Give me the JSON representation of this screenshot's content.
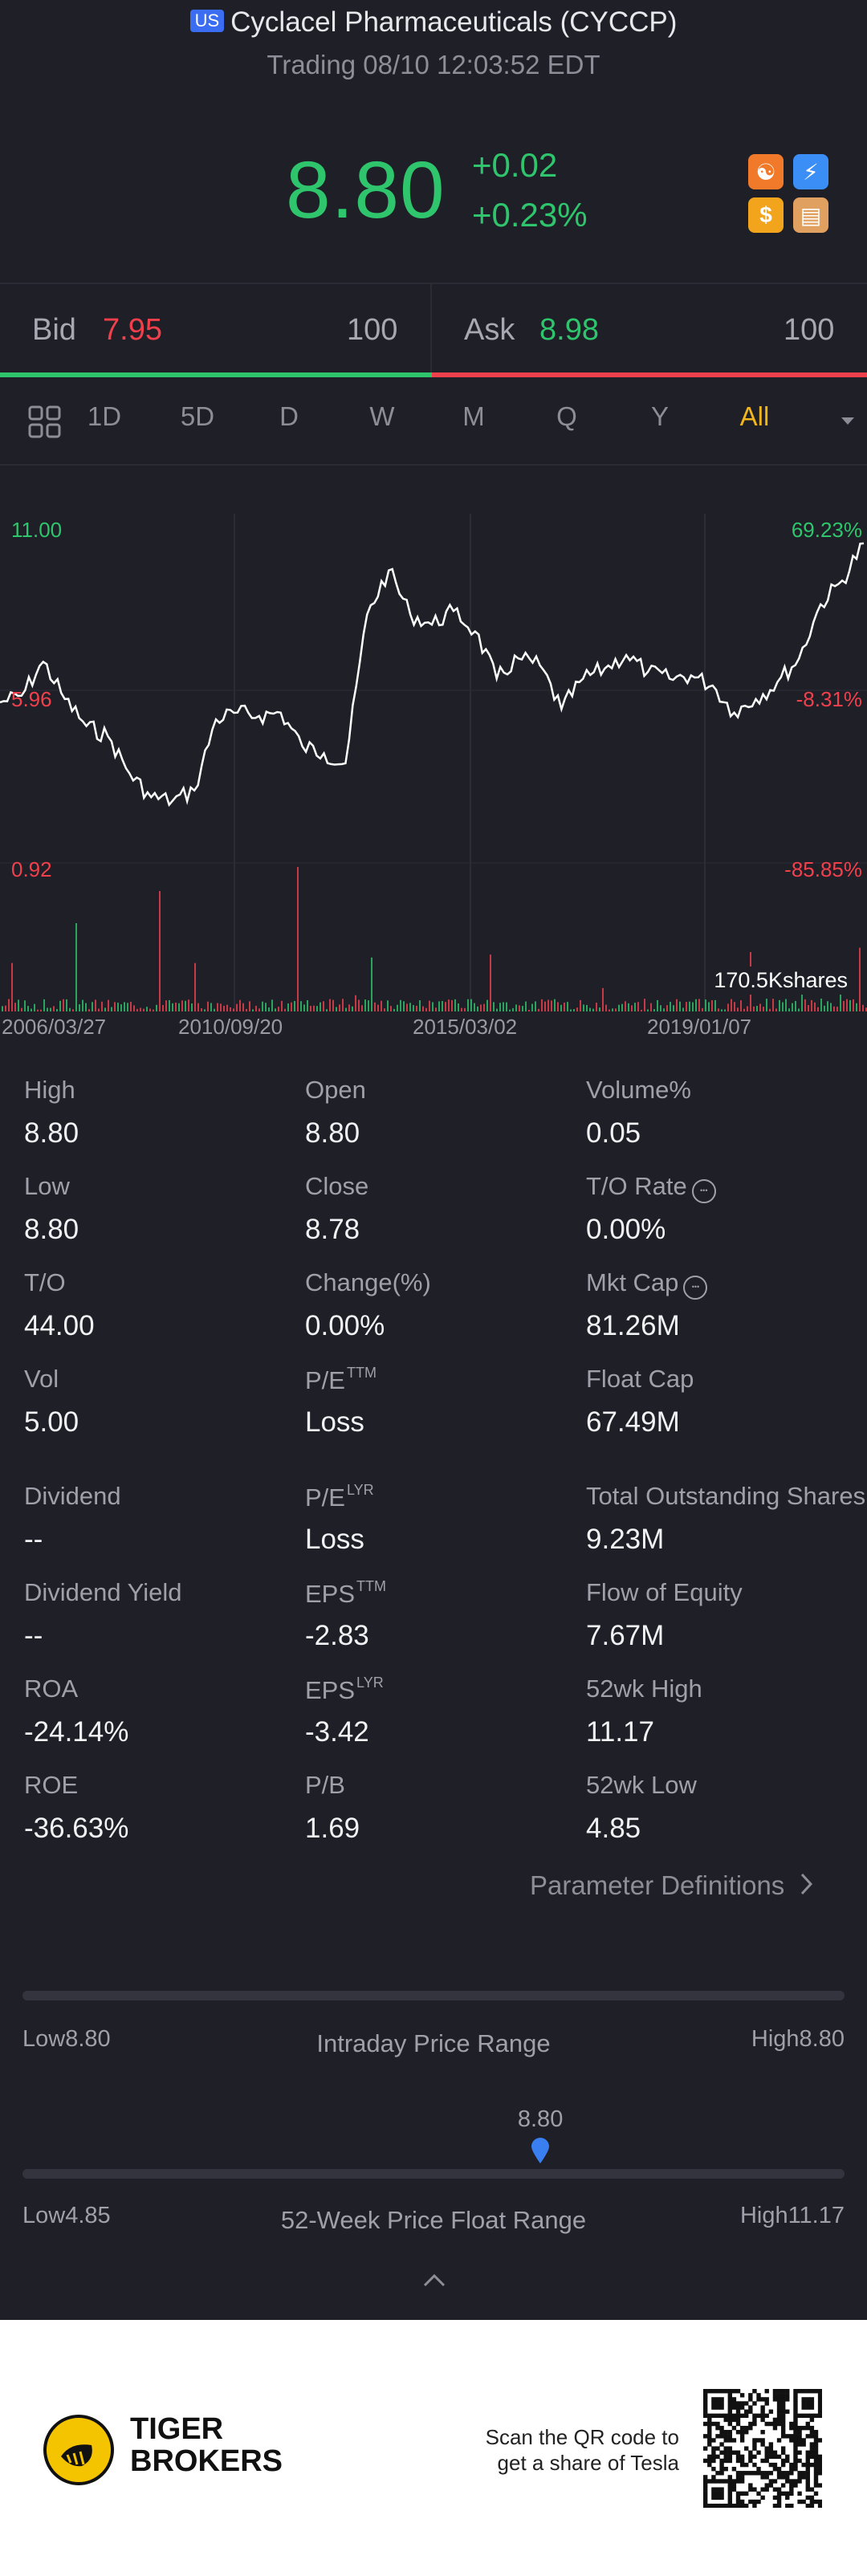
{
  "header": {
    "market_badge": "US",
    "title": "Cyclacel Pharmaceuticals (CYCCP)",
    "subtitle": "Trading 08/10 12:03:52 EDT",
    "price": "8.80",
    "change": "+0.02",
    "change_pct": "+0.23%",
    "accent_green": "#2fc56c",
    "accent_red": "#f0404c"
  },
  "quote": {
    "bid_label": "Bid",
    "bid_price": "7.95",
    "bid_size": "100",
    "ask_label": "Ask",
    "ask_price": "8.98",
    "ask_size": "100"
  },
  "tabs": [
    {
      "label": "1D"
    },
    {
      "label": "5D"
    },
    {
      "label": "D"
    },
    {
      "label": "W"
    },
    {
      "label": "M"
    },
    {
      "label": "Q"
    },
    {
      "label": "Y"
    },
    {
      "label": "All",
      "active": true
    }
  ],
  "chart_data": {
    "type": "line",
    "y_left_ticks": [
      "11.00",
      "5.96",
      "0.92"
    ],
    "y_right_ticks": [
      "69.23%",
      "-8.31%",
      "-85.85%"
    ],
    "x_ticks": [
      "2006/03/27",
      "2010/09/20",
      "2015/03/02",
      "2019/01/07"
    ],
    "volume_label": "170.5Kshares",
    "ylim": [
      0.92,
      11.0
    ],
    "x": [
      2006.2,
      2006.6,
      2007.0,
      2007.4,
      2007.8,
      2008.2,
      2008.6,
      2009.0,
      2009.4,
      2009.8,
      2010.2,
      2010.6,
      2011.0,
      2011.4,
      2011.8,
      2012.2,
      2012.6,
      2013.0,
      2013.4,
      2013.8,
      2014.2,
      2014.6,
      2015.0,
      2015.4,
      2015.8,
      2016.2,
      2016.6,
      2017.0,
      2017.4,
      2017.8,
      2018.2,
      2018.6,
      2019.0,
      2019.4,
      2019.8,
      2020.2,
      2020.6,
      2021.0,
      2021.4,
      2021.8,
      2022.2
    ],
    "values": [
      5.9,
      6.1,
      7.1,
      6.0,
      5.2,
      4.9,
      3.8,
      3.1,
      3.0,
      3.3,
      5.4,
      5.6,
      5.5,
      5.6,
      4.6,
      4.4,
      4.1,
      8.5,
      9.8,
      8.5,
      8.2,
      8.6,
      8.0,
      6.6,
      7.2,
      7.0,
      5.7,
      6.6,
      6.9,
      7.3,
      6.8,
      6.6,
      6.7,
      6.4,
      5.6,
      6.0,
      6.5,
      7.2,
      8.8,
      9.5,
      10.6
    ]
  },
  "stats": [
    [
      {
        "label": "High",
        "value": "8.80"
      },
      {
        "label": "Open",
        "value": "8.80"
      },
      {
        "label": "Volume%",
        "value": "0.05"
      }
    ],
    [
      {
        "label": "Low",
        "value": "8.80"
      },
      {
        "label": "Close",
        "value": "8.78"
      },
      {
        "label": "T/O Rate",
        "value": "0.00%",
        "info": true
      }
    ],
    [
      {
        "label": "T/O",
        "value": "44.00"
      },
      {
        "label": "Change(%)",
        "value": "0.00%"
      },
      {
        "label": "Mkt Cap",
        "value": "81.26M",
        "info": true
      }
    ],
    [
      {
        "label": "Vol",
        "value": "5.00"
      },
      {
        "label": "P/E",
        "sup": "TTM",
        "value": "Loss"
      },
      {
        "label": "Float Cap",
        "value": "67.49M"
      }
    ],
    [
      {
        "label": "Dividend",
        "value": "--"
      },
      {
        "label": "P/E",
        "sup": "LYR",
        "value": "Loss"
      },
      {
        "label": "Total Outstanding Shares",
        "value": "9.23M"
      }
    ],
    [
      {
        "label": "Dividend Yield",
        "value": "--"
      },
      {
        "label": "EPS",
        "sup": "TTM",
        "value": "-2.83"
      },
      {
        "label": "Flow of Equity",
        "value": "7.67M"
      }
    ],
    [
      {
        "label": "ROA",
        "value": "-24.14%"
      },
      {
        "label": "EPS",
        "sup": "LYR",
        "value": "-3.42"
      },
      {
        "label": "52wk High",
        "value": "11.17"
      }
    ],
    [
      {
        "label": "ROE",
        "value": "-36.63%"
      },
      {
        "label": "P/B",
        "value": "1.69"
      },
      {
        "label": "52wk Low",
        "value": "4.85"
      }
    ]
  ],
  "param_link": "Parameter Definitions",
  "intraday": {
    "low": "Low8.80",
    "title": "Intraday Price Range",
    "high": "High8.80"
  },
  "week52": {
    "current": "8.80",
    "fraction": 0.63,
    "low": "Low4.85",
    "title": "52-Week Price Float Range",
    "high": "High11.17"
  },
  "footer": {
    "brand_line1": "TIGER",
    "brand_line2": "BROKERS",
    "scan_line1": "Scan the QR code to",
    "scan_line2": "get a share of Tesla"
  },
  "icons": [
    "chart-grid-icon",
    "dropdown-arrow-icon",
    "chevron-right-icon",
    "chevron-up-icon",
    "pin-marker-icon",
    "qr-code-icon",
    "tiger-logo-icon"
  ]
}
